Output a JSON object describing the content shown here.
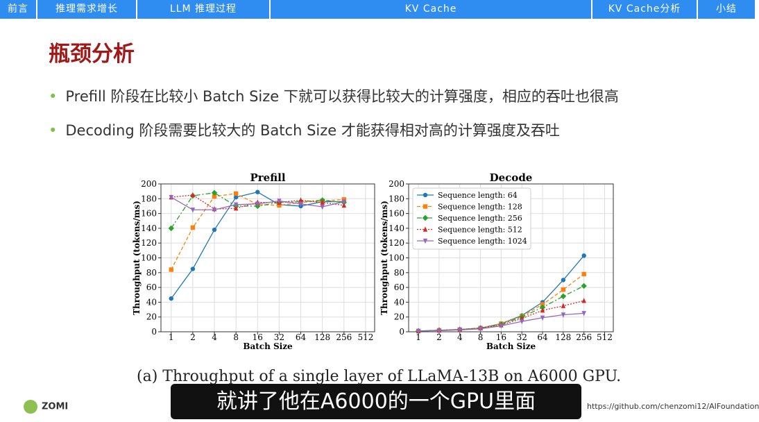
{
  "nav": [
    "前言",
    "推理需求增长",
    "LLM 推理过程",
    "KV Cache",
    "KV Cache分析",
    "小结"
  ],
  "header": {
    "title": "瓶颈分析"
  },
  "bullets": [
    "Prefill 阶段在比较小 Batch Size 下就可以获得比较大的计算强度，相应的吞吐也很高",
    "Decoding 阶段需要比较大的 Batch Size 才能获得相对高的计算强度及吞吐"
  ],
  "caption": "(a) Throughput of a single layer of LLaMA-13B on A6000 GPU.",
  "subtitle": "就讲了他在A6000的一个GPU里面",
  "footer": {
    "brand": "ZOMI",
    "url": "https://github.com/chenzomi12/AIFoundation"
  },
  "chart_data": [
    {
      "type": "line",
      "title": "Prefill",
      "x_label": "Batch Size",
      "y_label": "Throughput (tokens/ms)",
      "xscale": "log2",
      "x": [
        1,
        2,
        4,
        8,
        16,
        32,
        64,
        128,
        256
      ],
      "xlim": [
        0.72,
        685
      ],
      "xticks": [
        1,
        2,
        4,
        8,
        16,
        32,
        64,
        128,
        256,
        512
      ],
      "ylim": [
        0,
        200
      ],
      "yticks": [
        0,
        20,
        40,
        60,
        80,
        100,
        120,
        140,
        160,
        180,
        200
      ],
      "grid": true,
      "series": [
        {
          "name": "Sequence length: 64",
          "color": "#1f77b4",
          "linestyle": "solid",
          "marker": "o",
          "values": [
            45,
            85,
            138,
            182,
            189,
            172,
            170,
            176,
            176
          ]
        },
        {
          "name": "Sequence length: 128",
          "color": "#ff7f0e",
          "linestyle": "dashed",
          "marker": "s",
          "values": [
            84,
            141,
            183,
            187,
            172,
            171,
            175,
            177,
            179
          ]
        },
        {
          "name": "Sequence length: 256",
          "color": "#2ca02c",
          "linestyle": "dashdot",
          "marker": "D",
          "values": [
            140,
            184,
            188,
            170,
            170,
            175,
            176,
            178,
            175
          ]
        },
        {
          "name": "Sequence length: 512",
          "color": "#d62728",
          "linestyle": "dotted",
          "marker": "^",
          "values": [
            182,
            185,
            166,
            167,
            175,
            175,
            178,
            175,
            171
          ]
        },
        {
          "name": "Sequence length: 1024",
          "color": "#9467bd",
          "linestyle": "solid",
          "marker": "v",
          "values": [
            182,
            165,
            165,
            172,
            173,
            177,
            173,
            169,
            176
          ]
        }
      ]
    },
    {
      "type": "line",
      "title": "Decode",
      "x_label": "Batch Size",
      "y_label": "Throughput (tokens/ms)",
      "xscale": "log2",
      "x": [
        1,
        2,
        4,
        8,
        16,
        32,
        64,
        128,
        256
      ],
      "xlim": [
        0.72,
        685
      ],
      "xticks": [
        1,
        2,
        4,
        8,
        16,
        32,
        64,
        128,
        256,
        512
      ],
      "ylim": [
        0,
        200
      ],
      "yticks": [
        0,
        20,
        40,
        60,
        80,
        100,
        120,
        140,
        160,
        180,
        200
      ],
      "grid": true,
      "legend": "upper left",
      "series": [
        {
          "name": "Sequence length: 64",
          "color": "#1f77b4",
          "linestyle": "solid",
          "marker": "o",
          "values": [
            1,
            2,
            3,
            5,
            11,
            22,
            40,
            70,
            103
          ]
        },
        {
          "name": "Sequence length: 128",
          "color": "#ff7f0e",
          "linestyle": "dashed",
          "marker": "s",
          "values": [
            1,
            2,
            3,
            5,
            11,
            21,
            37,
            57,
            78
          ]
        },
        {
          "name": "Sequence length: 256",
          "color": "#2ca02c",
          "linestyle": "dashdot",
          "marker": "D",
          "values": [
            1,
            2,
            3,
            5,
            10,
            20,
            33,
            48,
            62
          ]
        },
        {
          "name": "Sequence length: 512",
          "color": "#d62728",
          "linestyle": "dotted",
          "marker": "^",
          "values": [
            1,
            2,
            3,
            5,
            9,
            18,
            29,
            35,
            42
          ]
        },
        {
          "name": "Sequence length: 1024",
          "color": "#9467bd",
          "linestyle": "solid",
          "marker": "v",
          "values": [
            1,
            1.5,
            2.5,
            4,
            8,
            14,
            19,
            23,
            25
          ]
        }
      ]
    }
  ]
}
